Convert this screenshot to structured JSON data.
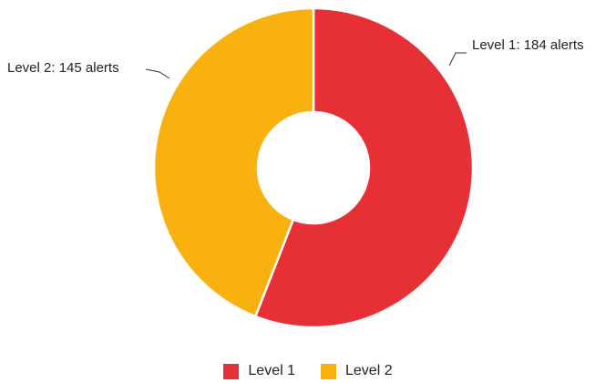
{
  "chart_data": {
    "type": "pie",
    "variant": "donut",
    "title": "",
    "series": [
      {
        "name": "Level 1",
        "value": 184,
        "color": "#E73035"
      },
      {
        "name": "Level 2",
        "value": 145,
        "color": "#F9B10F"
      }
    ],
    "data_labels": [
      "Level 1: 184 alerts",
      "Level 2: 145 alerts"
    ],
    "legend": {
      "placement": "bottom",
      "entries": [
        "Level 1",
        "Level 2"
      ]
    }
  }
}
